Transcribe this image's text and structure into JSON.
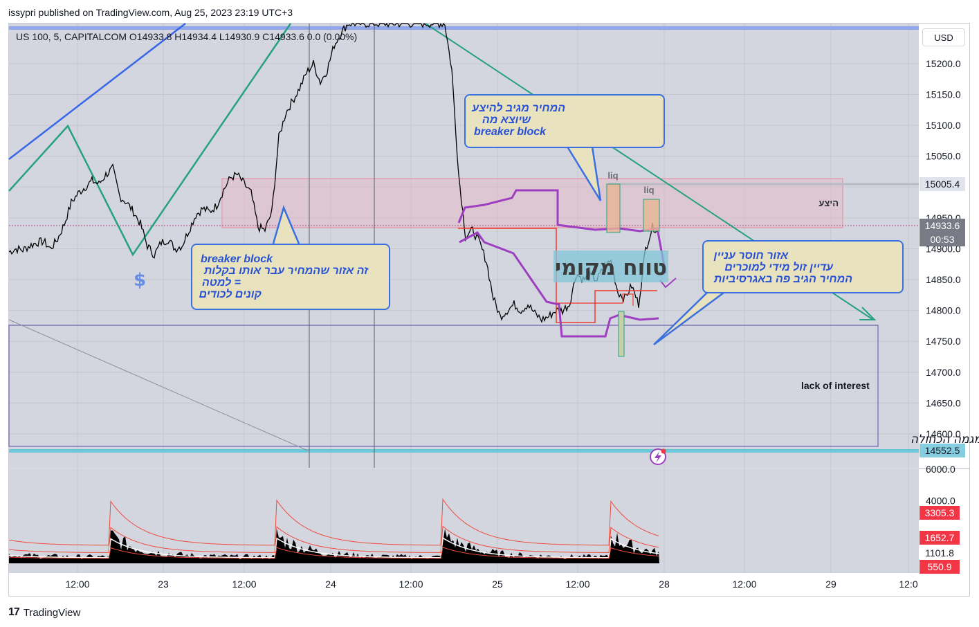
{
  "header": {
    "credit": "issypri published on TradingView.com, Aug 25, 2023 23:19 UTC+3",
    "ohlc": "US 100, 5, CAPITALCOM  O14933.8  H14934.4  L14930.9  C14933.6  0.0 (0.00%)",
    "currency_button": "USD"
  },
  "footer": {
    "brand": "TradingView"
  },
  "annotations": {
    "callout_top": [
      "המחיר מגיב להיצע",
      "שיוצא מה",
      "breaker block"
    ],
    "callout_left": [
      "breaker block",
      "זה אזור שהמחיר עבר אותו בקלות",
      "= למטה",
      "קונים לכודים"
    ],
    "callout_right": [
      "אזור חוסר עניין",
      "עדיין זול מידי למוכרים",
      "המחיר הגיב פה באגרסיביות"
    ],
    "supply_label": "היצע",
    "local_range": "טווח מקומי",
    "liq_1": "liq",
    "liq_2": "liq",
    "lack_of_interest": "lack of interest",
    "last_low": "נמוך אחרון של המגמה הכחולה",
    "dollar": "$"
  },
  "chart_data": [
    {
      "type": "line",
      "title": "",
      "symbol": "US 100",
      "interval": "5",
      "exchange": "CAPITALCOM",
      "price_axis_ticks": [
        15200,
        15150,
        15100,
        15050,
        15000,
        14950,
        14900,
        14850,
        14800,
        14750,
        14700,
        14650,
        14600
      ],
      "time_axis_ticks": [
        "12:00",
        "23",
        "12:00",
        "24",
        "12:00",
        "25",
        "12:00",
        "28",
        "12:00",
        "29",
        "12:0"
      ],
      "ylim": [
        14545,
        15265
      ],
      "price_labels": [
        {
          "value": "15005.4",
          "color": "#e0e3eb",
          "text_color": "#131722"
        },
        {
          "value": "14933.6",
          "color": "#787b86",
          "text_color": "#ffffff"
        },
        {
          "value": "00:53",
          "color": "#787b86",
          "text_color": "#ffffff"
        },
        {
          "value": "14552.5",
          "color": "#86cde0",
          "text_color": "#131722"
        }
      ],
      "series": [
        {
          "name": "",
          "x": [
            0,
            10,
            20,
            30,
            40,
            50,
            60,
            70,
            80,
            90,
            100,
            110,
            120,
            130,
            140,
            150,
            160,
            170,
            180,
            190,
            200,
            210,
            220,
            230,
            240,
            250,
            260,
            270,
            280,
            290,
            300,
            310,
            320,
            330,
            340,
            350,
            360,
            370,
            380,
            390,
            400,
            410,
            420,
            430,
            440,
            450,
            460,
            470,
            480,
            490,
            500,
            510,
            520,
            530,
            540,
            550,
            560,
            570,
            580,
            590,
            600,
            610,
            620,
            630,
            640,
            650,
            660,
            670,
            680,
            690,
            700,
            710,
            720,
            730,
            740,
            750,
            760,
            770,
            780,
            790,
            800,
            810,
            820,
            830,
            840,
            850,
            860,
            870,
            880,
            890,
            900,
            910,
            920,
            930,
            940
          ],
          "y": [
            14895,
            14900,
            14898,
            14905,
            14910,
            14912,
            14900,
            14915,
            14940,
            14975,
            14990,
            15000,
            15010,
            15005,
            15020,
            15030,
            14985,
            14975,
            14960,
            14940,
            14905,
            14890,
            14910,
            14915,
            14900,
            14905,
            14930,
            14955,
            14965,
            14960,
            14970,
            14995,
            15015,
            15020,
            15005,
            14990,
            14935,
            14930,
            14960,
            15080,
            15120,
            15140,
            15160,
            15185,
            15200,
            15170,
            15190,
            15230,
            15250,
            15265,
            15265,
            15265,
            15265,
            15265,
            15265,
            15265,
            15265,
            15265,
            15265,
            15265,
            15265,
            15265,
            15265,
            15265,
            15190,
            15020,
            14920,
            14930,
            14910,
            14880,
            14820,
            14790,
            14800,
            14810,
            14800,
            14810,
            14795,
            14785,
            14790,
            14800,
            14800,
            14810,
            14860,
            14850,
            14855,
            14850,
            14870,
            14880,
            14830,
            14820,
            14840,
            14810,
            14900,
            14935,
            14930
          ]
        }
      ],
      "zones": [
        {
          "label": "היצע",
          "from": 14930,
          "to": 15012
        },
        {
          "label": "lack of interest",
          "from": 14560,
          "to": 14765
        }
      ]
    },
    {
      "type": "area",
      "title": "",
      "ylim": [
        0,
        6000
      ],
      "axis_ticks": [
        6000,
        4000
      ],
      "labels": [
        {
          "value": "3305.3",
          "color": "#f23645"
        },
        {
          "value": "1652.7",
          "color": "#f23645"
        },
        {
          "value": "1101.8",
          "color": "#ffffff"
        },
        {
          "value": "550.9",
          "color": "#f23645"
        }
      ]
    }
  ]
}
